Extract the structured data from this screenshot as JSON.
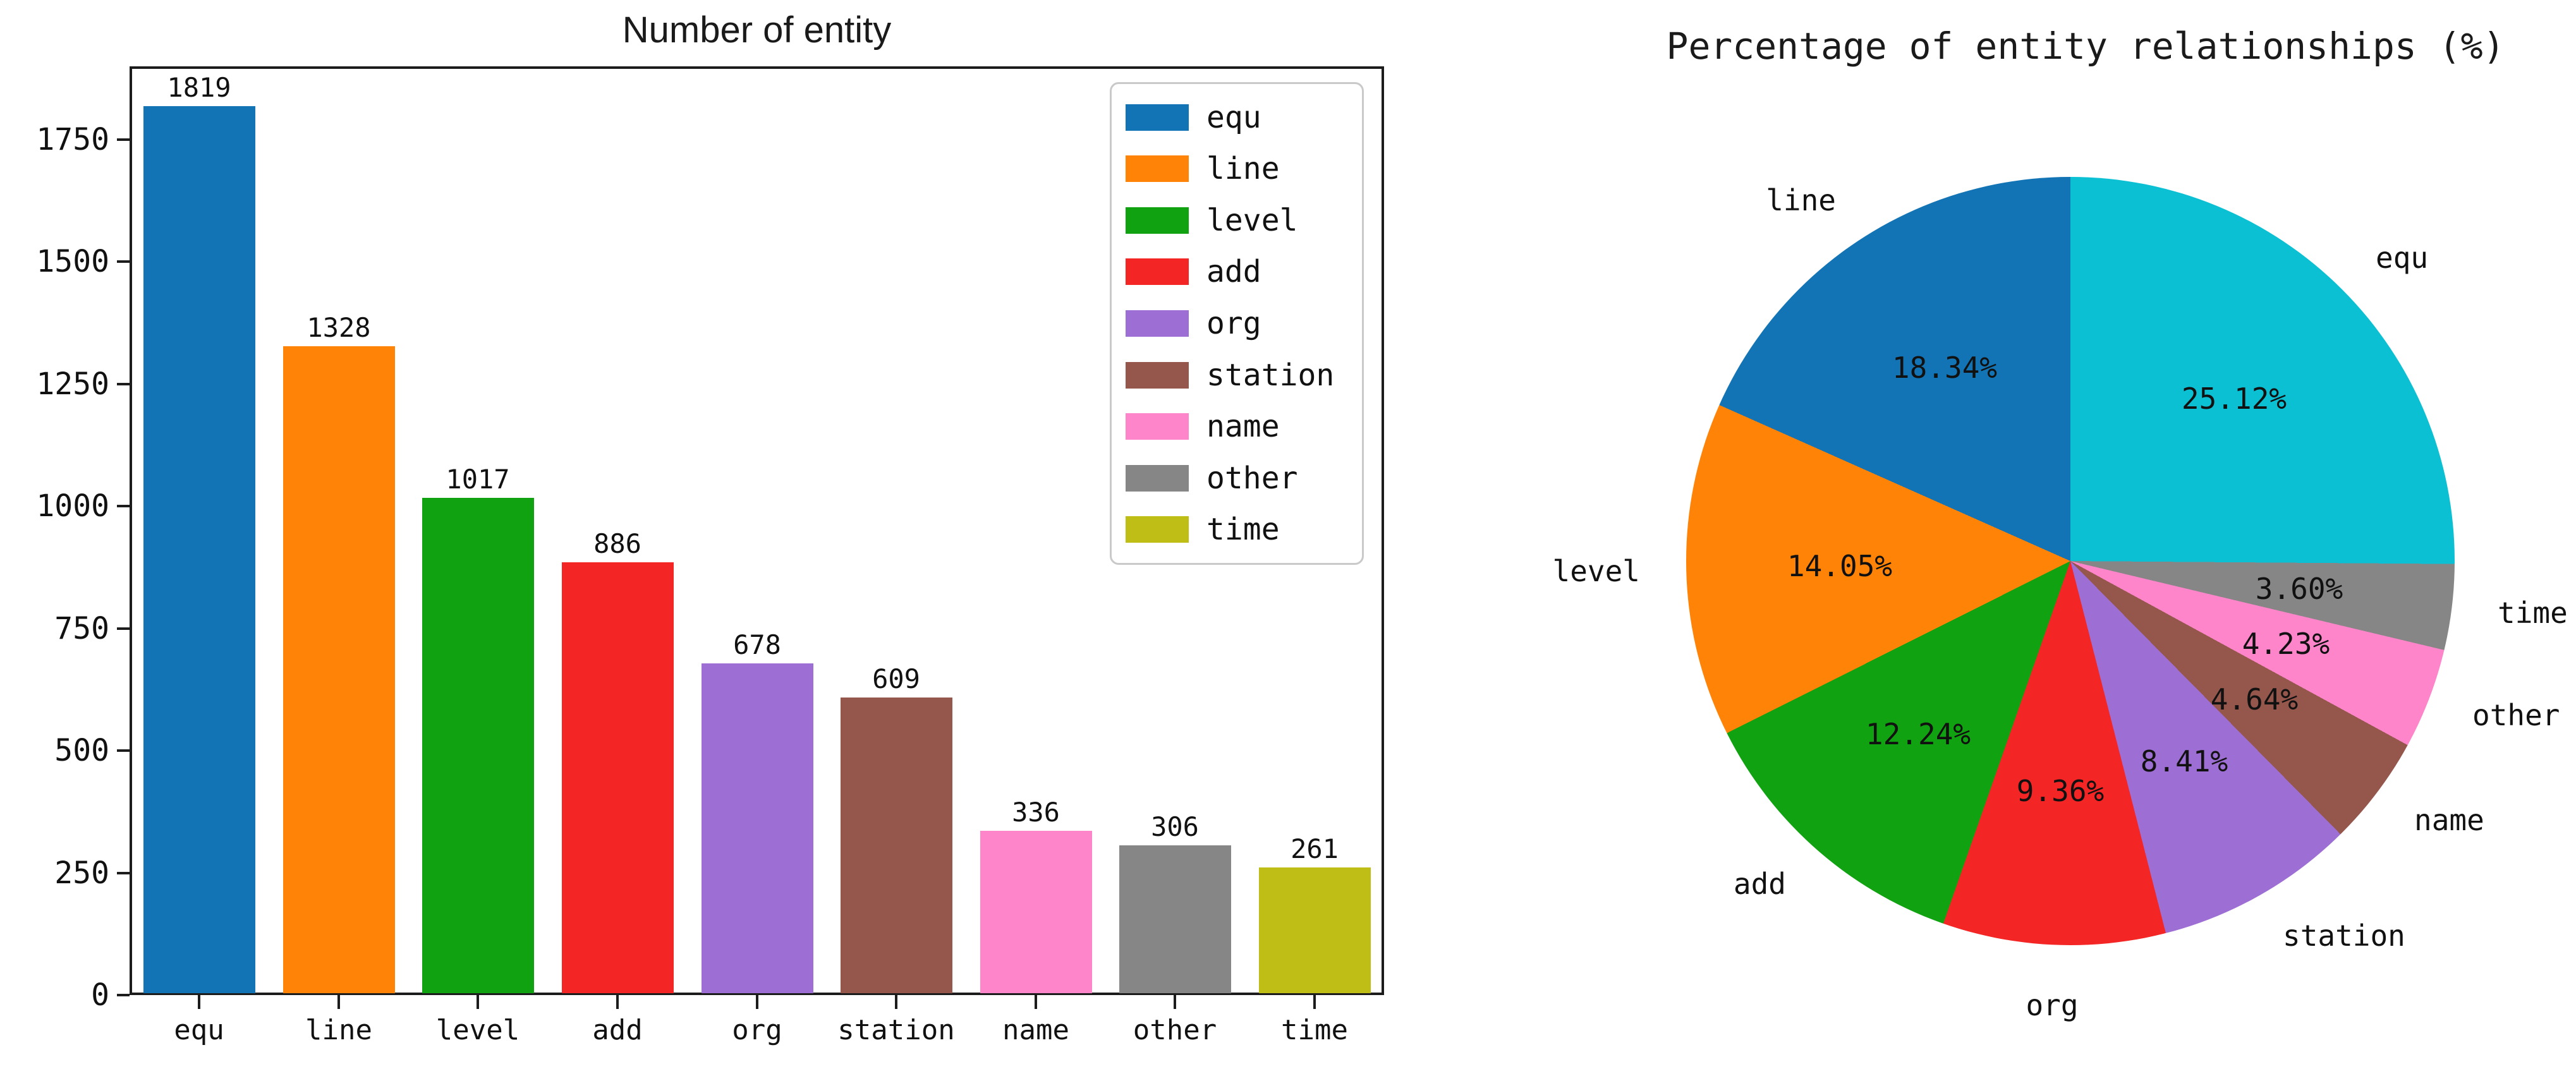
{
  "chart_data": [
    {
      "type": "bar",
      "title": "Number of entity",
      "categories": [
        "equ",
        "line",
        "level",
        "add",
        "org",
        "station",
        "name",
        "other",
        "time"
      ],
      "values": [
        1819,
        1328,
        1017,
        886,
        678,
        609,
        336,
        306,
        261
      ],
      "value_labels": [
        "1819",
        "1328",
        "1017",
        "886",
        "678",
        "609",
        "336",
        "306",
        "261"
      ],
      "colors": [
        "#1274b4",
        "#ff8307",
        "#11a211",
        "#f42525",
        "#9d6ed3",
        "#95564c",
        "#ff85cb",
        "#868686",
        "#bfbe17"
      ],
      "xlabel": "",
      "ylabel": "",
      "ylim": [
        0,
        1900
      ],
      "yticks": [
        0,
        250,
        500,
        750,
        1000,
        1250,
        1500,
        1750
      ],
      "grid": false,
      "legend": {
        "position": "upper-right",
        "labels": [
          "equ",
          "line",
          "level",
          "add",
          "org",
          "station",
          "name",
          "other",
          "time"
        ]
      }
    },
    {
      "type": "pie",
      "title": "Percentage of entity relationships (%)",
      "start_angle_deg": 90,
      "direction": "counterclockwise",
      "slices": [
        {
          "label": "line",
          "pct": 18.34,
          "pct_label": "18.34%",
          "color": "#1274b4"
        },
        {
          "label": "level",
          "pct": 14.05,
          "pct_label": "14.05%",
          "color": "#ff8307"
        },
        {
          "label": "add",
          "pct": 12.24,
          "pct_label": "12.24%",
          "color": "#11a211"
        },
        {
          "label": "org",
          "pct": 9.36,
          "pct_label": "9.36%",
          "color": "#f42525"
        },
        {
          "label": "station",
          "pct": 8.41,
          "pct_label": "8.41%",
          "color": "#9d6ed3"
        },
        {
          "label": "name",
          "pct": 4.64,
          "pct_label": "4.64%",
          "color": "#95564c"
        },
        {
          "label": "other",
          "pct": 4.23,
          "pct_label": "4.23%",
          "color": "#ff85cb"
        },
        {
          "label": "time",
          "pct": 3.6,
          "pct_label": "3.60%",
          "color": "#868686"
        },
        {
          "label": "equ",
          "pct": 25.12,
          "pct_label": "25.12%",
          "color": "#0cc0d4"
        }
      ]
    }
  ]
}
